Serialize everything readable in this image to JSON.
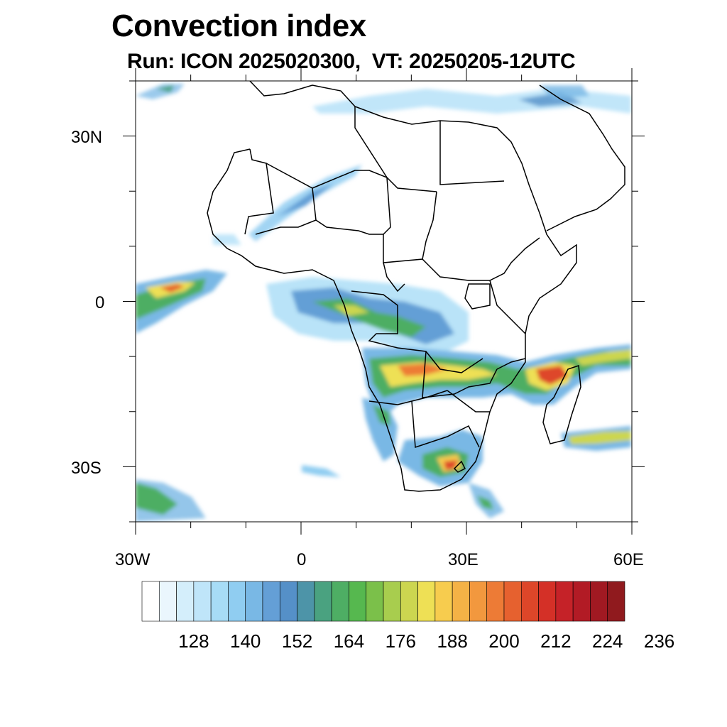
{
  "title": "Convection index",
  "subtitle": "Run: ICON 2025020300,  VT: 20250205-12UTC",
  "map": {
    "lon_range": [
      -30,
      60
    ],
    "lat_range": [
      -40,
      40
    ],
    "lat_labels": [
      "30N",
      "0",
      "30S"
    ],
    "lon_labels": [
      "30W",
      "0",
      "30E",
      "60E"
    ]
  },
  "colorbar": {
    "labels": [
      "128",
      "140",
      "152",
      "164",
      "176",
      "188",
      "200",
      "212",
      "224",
      "236"
    ],
    "colors": [
      "#ffffff",
      "#eaf6fd",
      "#d4eefb",
      "#bfe5f9",
      "#a7dcf6",
      "#90cdf1",
      "#79b8e5",
      "#649fd6",
      "#5590c8",
      "#4d94a8",
      "#4aa280",
      "#4eae64",
      "#56b84f",
      "#7bc04a",
      "#a8cd4e",
      "#ccd650",
      "#eee055",
      "#f7cc4e",
      "#f4b246",
      "#f2983e",
      "#ed7b36",
      "#e6612f",
      "#de4629",
      "#d43027",
      "#c52228",
      "#b21b25",
      "#a11922",
      "#901a1e"
    ]
  }
}
